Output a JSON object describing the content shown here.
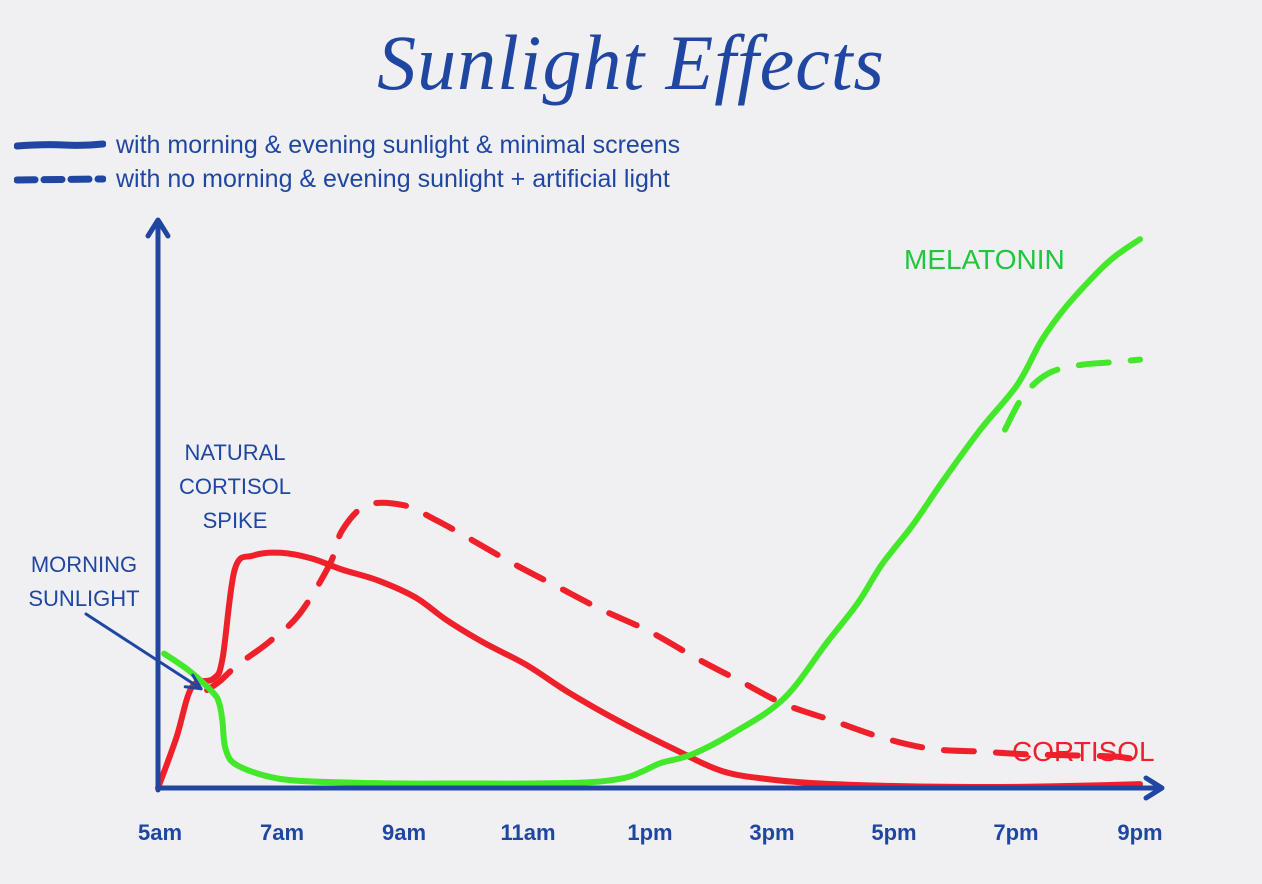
{
  "chart_data": {
    "type": "line",
    "title": "Sunlight Effects",
    "xlabel": "",
    "ylabel": "",
    "x_ticks": [
      "5am",
      "7am",
      "9am",
      "11am",
      "1pm",
      "3pm",
      "5pm",
      "7pm",
      "9pm"
    ],
    "xlim": [
      5,
      21
    ],
    "ylim": [
      0,
      1
    ],
    "y_axis_values_shown": false,
    "grid": false,
    "legend": [
      {
        "label": "with morning & evening sunlight & minimal screens",
        "style": "solid"
      },
      {
        "label": "with no morning & evening sunlight + artificial light",
        "style": "dashed"
      }
    ],
    "series": [
      {
        "name": "CORTISOL",
        "style": "solid",
        "color": "#f0202a",
        "x": [
          5.0,
          5.3,
          5.55,
          5.9,
          6.05,
          6.25,
          6.55,
          7.0,
          7.5,
          8.0,
          8.6,
          9.2,
          9.7,
          10.3,
          11.0,
          11.7,
          12.5,
          13.4,
          14.2,
          15.0,
          15.8,
          16.8,
          18.0,
          19.0,
          20.0,
          21.0
        ],
        "y": [
          0.0,
          0.09,
          0.18,
          0.195,
          0.23,
          0.39,
          0.415,
          0.42,
          0.41,
          0.39,
          0.37,
          0.34,
          0.3,
          0.26,
          0.22,
          0.17,
          0.12,
          0.07,
          0.03,
          0.015,
          0.008,
          0.004,
          0.002,
          0.002,
          0.004,
          0.007
        ]
      },
      {
        "name": "CORTISOL",
        "style": "dashed",
        "color": "#f0202a",
        "x": [
          5.8,
          6.0,
          6.3,
          6.8,
          7.3,
          7.8,
          8.0,
          8.4,
          9.0,
          9.5,
          10.0,
          10.8,
          11.5,
          12.2,
          13.0,
          13.8,
          14.5,
          15.2,
          16.0,
          16.8,
          17.6,
          18.4,
          19.2,
          20.0,
          20.6,
          21.0
        ],
        "y": [
          0.175,
          0.19,
          0.22,
          0.26,
          0.31,
          0.4,
          0.46,
          0.505,
          0.505,
          0.48,
          0.45,
          0.4,
          0.36,
          0.32,
          0.28,
          0.23,
          0.19,
          0.15,
          0.12,
          0.09,
          0.07,
          0.065,
          0.06,
          0.058,
          0.056,
          0.05
        ]
      },
      {
        "name": "MELATONIN",
        "style": "solid",
        "color": "#44e82a",
        "x": [
          5.1,
          5.5,
          5.9,
          6.0,
          6.05,
          6.1,
          6.3,
          7.0,
          8.0,
          9.0,
          10.0,
          11.0,
          12.0,
          12.6,
          12.9,
          13.2,
          13.7,
          14.4,
          15.2,
          15.9,
          16.4,
          16.8,
          17.3,
          17.8,
          18.4,
          19.0,
          19.4,
          19.8,
          20.3,
          20.6,
          21.0
        ],
        "y": [
          0.24,
          0.21,
          0.17,
          0.15,
          0.12,
          0.07,
          0.04,
          0.016,
          0.01,
          0.008,
          0.008,
          0.008,
          0.01,
          0.018,
          0.03,
          0.045,
          0.06,
          0.1,
          0.16,
          0.26,
          0.33,
          0.4,
          0.47,
          0.55,
          0.64,
          0.72,
          0.8,
          0.86,
          0.92,
          0.95,
          0.98
        ]
      },
      {
        "name": "MELATONIN",
        "style": "dashed",
        "color": "#44e82a",
        "x": [
          18.8,
          19.1,
          19.5,
          20.0,
          20.5,
          21.0
        ],
        "y": [
          0.64,
          0.7,
          0.74,
          0.755,
          0.76,
          0.765
        ]
      }
    ],
    "annotations": [
      {
        "text": [
          "NATURAL",
          "CORTISOL",
          "SPIKE"
        ]
      },
      {
        "text": [
          "MORNING",
          "SUNLIGHT"
        ],
        "arrow_to": [
          5.8,
          0.17
        ]
      }
    ],
    "series_labels": [
      {
        "text": "MELATONIN",
        "color": "#1ec83a"
      },
      {
        "text": "CORTISOL",
        "color": "#f0202a"
      }
    ],
    "colors": {
      "axis": "#1f47a2",
      "text": "#1f47a2",
      "background": "#f0eff2"
    }
  }
}
